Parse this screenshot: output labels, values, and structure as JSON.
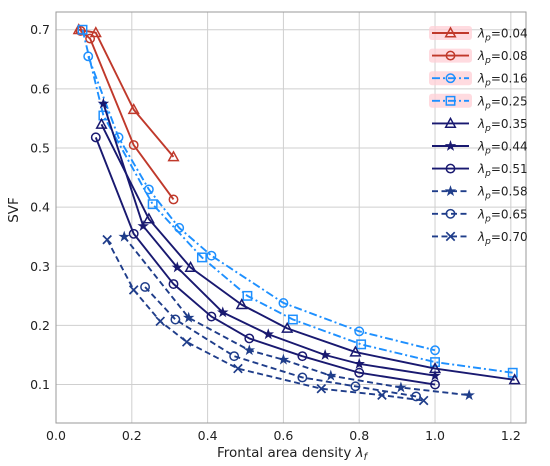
{
  "chart_data": {
    "type": "line",
    "xlabel": "Frontal area density λ_f",
    "ylabel": "SVF",
    "xlim": [
      0.0,
      1.24
    ],
    "ylim": [
      0.035,
      0.73
    ],
    "x_ticks": [
      0.0,
      0.2,
      0.4,
      0.6,
      0.8,
      1.0,
      1.2
    ],
    "x_tick_labels": [
      "0.0",
      "0.2",
      "0.4",
      "0.6",
      "0.8",
      "1.0",
      "1.2"
    ],
    "y_ticks": [
      0.1,
      0.2,
      0.3,
      0.4,
      0.5,
      0.6,
      0.7
    ],
    "y_tick_labels": [
      "0.1",
      "0.2",
      "0.3",
      "0.4",
      "0.5",
      "0.6",
      "0.7"
    ],
    "grid": true,
    "legend_position": "upper-right",
    "series": [
      {
        "name": "λ_p=0.04",
        "color": "#c0392b",
        "marker": "triangle",
        "linestyle": "solid",
        "x": [
          0.06,
          0.105,
          0.205,
          0.31
        ],
        "y": [
          0.7,
          0.695,
          0.565,
          0.485
        ]
      },
      {
        "name": "λ_p=0.08",
        "color": "#c0392b",
        "marker": "circle",
        "linestyle": "solid",
        "x": [
          0.065,
          0.09,
          0.205,
          0.31
        ],
        "y": [
          0.698,
          0.685,
          0.505,
          0.413
        ]
      },
      {
        "name": "λ_p=0.16",
        "color": "#1e90ff",
        "marker": "circle",
        "linestyle": "dashdot",
        "x": [
          0.085,
          0.165,
          0.245,
          0.325,
          0.41,
          0.6,
          0.8,
          1.0
        ],
        "y": [
          0.655,
          0.518,
          0.43,
          0.365,
          0.318,
          0.238,
          0.19,
          0.158
        ]
      },
      {
        "name": "λ_p=0.25",
        "color": "#1e90ff",
        "marker": "square",
        "linestyle": "dashdot",
        "x": [
          0.07,
          0.125,
          0.255,
          0.385,
          0.505,
          0.625,
          0.805,
          1.0,
          1.205
        ],
        "y": [
          0.7,
          0.555,
          0.405,
          0.315,
          0.25,
          0.21,
          0.168,
          0.138,
          0.12
        ]
      },
      {
        "name": "λ_p=0.35",
        "color": "#191970",
        "marker": "triangle",
        "linestyle": "solid",
        "x": [
          0.12,
          0.245,
          0.355,
          0.49,
          0.61,
          0.79,
          1.0,
          1.21
        ],
        "y": [
          0.54,
          0.38,
          0.298,
          0.235,
          0.195,
          0.155,
          0.127,
          0.108
        ]
      },
      {
        "name": "λ_p=0.44",
        "color": "#191970",
        "marker": "star",
        "linestyle": "solid",
        "x": [
          0.125,
          0.23,
          0.32,
          0.44,
          0.56,
          0.71,
          0.8,
          1.0
        ],
        "y": [
          0.575,
          0.368,
          0.298,
          0.222,
          0.185,
          0.15,
          0.135,
          0.115
        ]
      },
      {
        "name": "λ_p=0.51",
        "color": "#191970",
        "marker": "circle",
        "linestyle": "solid",
        "x": [
          0.105,
          0.205,
          0.31,
          0.41,
          0.51,
          0.65,
          0.8,
          1.0
        ],
        "y": [
          0.518,
          0.355,
          0.27,
          0.215,
          0.178,
          0.148,
          0.12,
          0.1
        ]
      },
      {
        "name": "λ_p=0.58",
        "color": "#1f3d8a",
        "marker": "star",
        "linestyle": "dashed",
        "x": [
          0.18,
          0.35,
          0.51,
          0.6,
          0.725,
          0.91,
          1.09
        ],
        "y": [
          0.35,
          0.213,
          0.158,
          0.142,
          0.115,
          0.095,
          0.082
        ]
      },
      {
        "name": "λ_p=0.65",
        "color": "#1f3d8a",
        "marker": "circle",
        "linestyle": "dashed",
        "x": [
          0.235,
          0.315,
          0.47,
          0.65,
          0.79,
          0.95
        ],
        "y": [
          0.265,
          0.21,
          0.148,
          0.112,
          0.097,
          0.08
        ]
      },
      {
        "name": "λ_p=0.70",
        "color": "#1f3d8a",
        "marker": "x",
        "linestyle": "dashed",
        "x": [
          0.135,
          0.205,
          0.275,
          0.345,
          0.48,
          0.7,
          0.86,
          0.97
        ],
        "y": [
          0.345,
          0.26,
          0.207,
          0.172,
          0.127,
          0.093,
          0.082,
          0.073
        ]
      }
    ],
    "legend_labels": {
      "s0": {
        "main": "λ",
        "sub": "p",
        "tail": "=0.04"
      },
      "s1": {
        "main": "λ",
        "sub": "p",
        "tail": "=0.08"
      },
      "s2": {
        "main": "λ",
        "sub": "p",
        "tail": "=0.16"
      },
      "s3": {
        "main": "λ",
        "sub": "p",
        "tail": "=0.25"
      },
      "s4": {
        "main": "λ",
        "sub": "p",
        "tail": "=0.35"
      },
      "s5": {
        "main": "λ",
        "sub": "p",
        "tail": "=0.44"
      },
      "s6": {
        "main": "λ",
        "sub": "p",
        "tail": "=0.51"
      },
      "s7": {
        "main": "λ",
        "sub": "p",
        "tail": "=0.58"
      },
      "s8": {
        "main": "λ",
        "sub": "p",
        "tail": "=0.65"
      },
      "s9": {
        "main": "λ",
        "sub": "p",
        "tail": "=0.70"
      }
    },
    "xlabel_parts": {
      "text": "Frontal area density ",
      "main": "λ",
      "sub": "f"
    }
  },
  "colors": {
    "plot_background": "#ffffff",
    "grid": "#cfcfcf",
    "highlight": "#ffcfd6"
  }
}
